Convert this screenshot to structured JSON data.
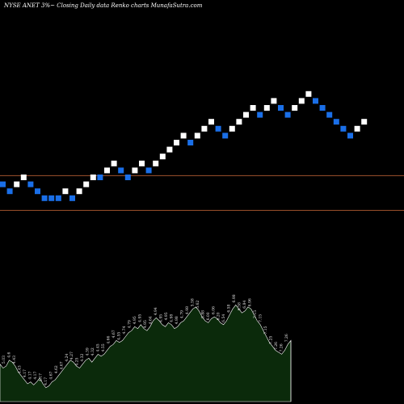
{
  "chart_data": {
    "type": "renko",
    "title": "NYSE ANET 3%~  Closing Daily data  Renko  charts MunafaSutra.com",
    "colors": {
      "background": "#000000",
      "up_brick": "#ffffff",
      "down_brick": "#1a6fe8",
      "reference_line": "#a0522d",
      "volume_fill": "#0b2a0b",
      "volume_stroke": "#ffffff"
    },
    "reference_levels": [
      {
        "value": 1
      },
      {
        "value": -4
      }
    ],
    "bricks": [
      {
        "level": -1,
        "dir": "down"
      },
      {
        "level": -2,
        "dir": "down"
      },
      {
        "level": -1,
        "dir": "up"
      },
      {
        "level": 0,
        "dir": "up"
      },
      {
        "level": -1,
        "dir": "down"
      },
      {
        "level": -2,
        "dir": "down"
      },
      {
        "level": -3,
        "dir": "down"
      },
      {
        "level": -3,
        "dir": "down"
      },
      {
        "level": -3,
        "dir": "down"
      },
      {
        "level": -2,
        "dir": "up"
      },
      {
        "level": -3,
        "dir": "down"
      },
      {
        "level": -2,
        "dir": "up"
      },
      {
        "level": -1,
        "dir": "up"
      },
      {
        "level": 0,
        "dir": "up"
      },
      {
        "level": 0,
        "dir": "down"
      },
      {
        "level": 1,
        "dir": "up"
      },
      {
        "level": 2,
        "dir": "up"
      },
      {
        "level": 1,
        "dir": "down"
      },
      {
        "level": 0,
        "dir": "down"
      },
      {
        "level": 1,
        "dir": "up"
      },
      {
        "level": 2,
        "dir": "up"
      },
      {
        "level": 1,
        "dir": "down"
      },
      {
        "level": 2,
        "dir": "up"
      },
      {
        "level": 3,
        "dir": "up"
      },
      {
        "level": 4,
        "dir": "up"
      },
      {
        "level": 5,
        "dir": "up"
      },
      {
        "level": 6,
        "dir": "up"
      },
      {
        "level": 5,
        "dir": "down"
      },
      {
        "level": 6,
        "dir": "up"
      },
      {
        "level": 7,
        "dir": "up"
      },
      {
        "level": 8,
        "dir": "up"
      },
      {
        "level": 7,
        "dir": "down"
      },
      {
        "level": 6,
        "dir": "down"
      },
      {
        "level": 7,
        "dir": "up"
      },
      {
        "level": 8,
        "dir": "up"
      },
      {
        "level": 9,
        "dir": "up"
      },
      {
        "level": 10,
        "dir": "up"
      },
      {
        "level": 9,
        "dir": "down"
      },
      {
        "level": 10,
        "dir": "up"
      },
      {
        "level": 11,
        "dir": "up"
      },
      {
        "level": 10,
        "dir": "down"
      },
      {
        "level": 9,
        "dir": "down"
      },
      {
        "level": 10,
        "dir": "up"
      },
      {
        "level": 11,
        "dir": "up"
      },
      {
        "level": 12,
        "dir": "up"
      },
      {
        "level": 11,
        "dir": "down"
      },
      {
        "level": 10,
        "dir": "down"
      },
      {
        "level": 9,
        "dir": "down"
      },
      {
        "level": 8,
        "dir": "down"
      },
      {
        "level": 7,
        "dir": "down"
      },
      {
        "level": 6,
        "dir": "down"
      },
      {
        "level": 7,
        "dir": "up"
      },
      {
        "level": 8,
        "dir": "up"
      }
    ],
    "volume_labels": [
      "5.03",
      "4.6",
      "4.43",
      "4.43",
      "4.17",
      "4.17",
      "4.17",
      "4.17",
      "4.17",
      "4.67",
      "4.62",
      "4.67",
      "4.24",
      "4.27",
      "4.25",
      "4.32",
      "4.39",
      "4.32",
      "4.45",
      "4.55",
      "4.66",
      "4.67",
      "4.55",
      "4.74",
      "4.79",
      "4.95",
      "4.95",
      "4.95",
      "4.64",
      "4.94",
      "4.95",
      "4.95",
      "4.98",
      "4.98",
      "4.79",
      "4.98",
      "5.58",
      "5.62",
      "5.88",
      "6.00",
      "6.06",
      "6.20",
      "6.54",
      "6.58",
      "6.98",
      "6.58",
      "6.84",
      "6.96",
      "7.15",
      "7.15",
      "7.15",
      "7.25",
      "7.26",
      "7.26",
      "7.26"
    ],
    "volume_profile": [
      0.38,
      0.34,
      0.36,
      0.42,
      0.4,
      0.36,
      0.3,
      0.26,
      0.22,
      0.18,
      0.2,
      0.17,
      0.2,
      0.24,
      0.18,
      0.14,
      0.16,
      0.2,
      0.22,
      0.26,
      0.3,
      0.34,
      0.38,
      0.42,
      0.4,
      0.36,
      0.34,
      0.38,
      0.42,
      0.44,
      0.4,
      0.44,
      0.48,
      0.46,
      0.48,
      0.52,
      0.56,
      0.58,
      0.62,
      0.6,
      0.62,
      0.66,
      0.7,
      0.72,
      0.76,
      0.74,
      0.78,
      0.74,
      0.72,
      0.76,
      0.82,
      0.85,
      0.82,
      0.78,
      0.76,
      0.8,
      0.78,
      0.74,
      0.76,
      0.8,
      0.82,
      0.86,
      0.9,
      0.94,
      0.96,
      0.92,
      0.86,
      0.82,
      0.8,
      0.84,
      0.86,
      0.84,
      0.8,
      0.78,
      0.82,
      0.88,
      0.94,
      0.98,
      0.94,
      0.9,
      0.92,
      0.96,
      0.94,
      0.88,
      0.82,
      0.78,
      0.72,
      0.66,
      0.6,
      0.56,
      0.52,
      0.5,
      0.48,
      0.52,
      0.58,
      0.62
    ]
  }
}
